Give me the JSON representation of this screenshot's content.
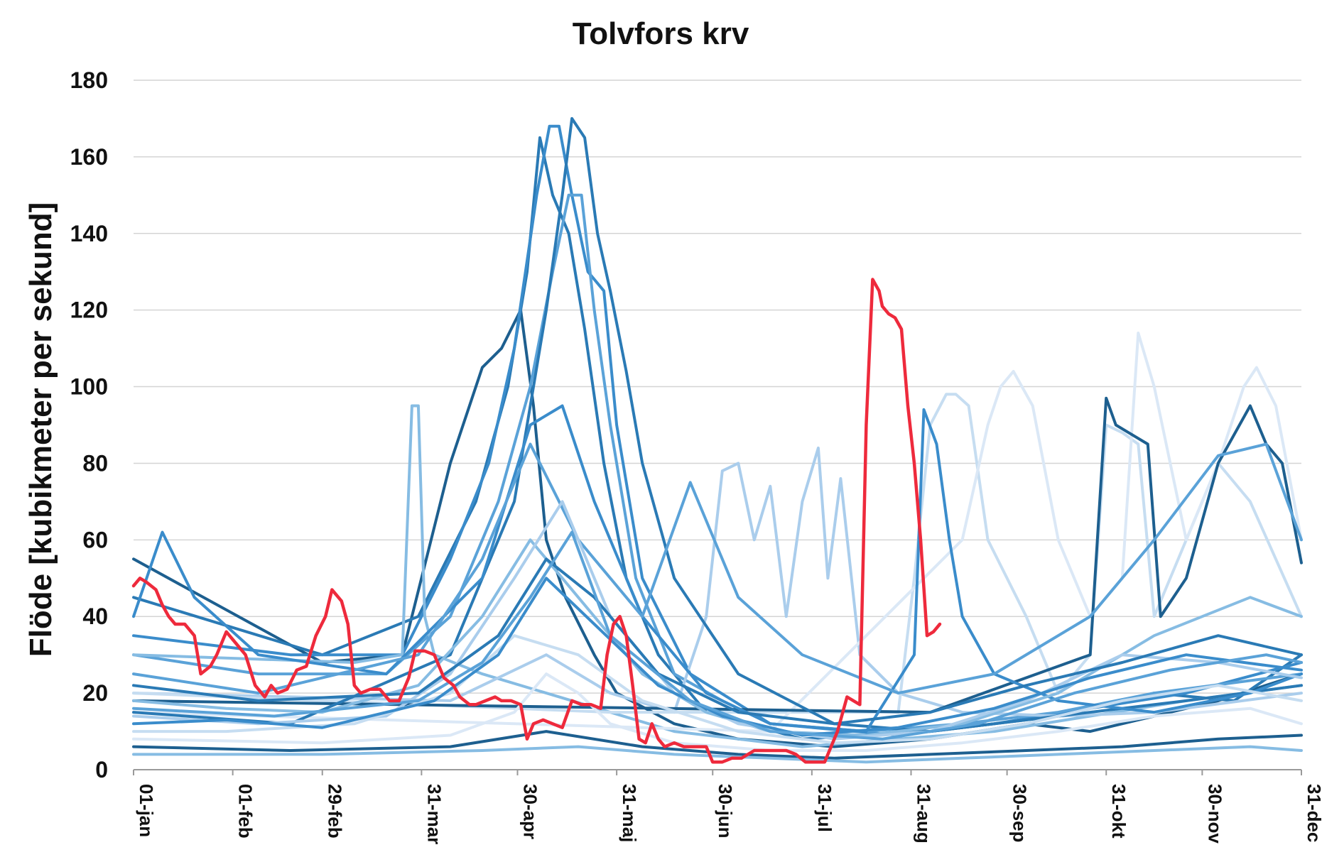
{
  "chart_data": {
    "type": "line",
    "title": "Tolvfors krv",
    "xlabel": "",
    "ylabel": "Flöde [kubikmeter per sekund]",
    "ylim": [
      0,
      180
    ],
    "yticks": [
      0,
      20,
      40,
      60,
      80,
      100,
      120,
      140,
      160,
      180
    ],
    "xlim": [
      1,
      366
    ],
    "xticks": [
      {
        "day": 1,
        "label": "01-jan"
      },
      {
        "day": 32,
        "label": "01-feb"
      },
      {
        "day": 60,
        "label": "29-feb"
      },
      {
        "day": 91,
        "label": "31-mar"
      },
      {
        "day": 121,
        "label": "30-apr"
      },
      {
        "day": 152,
        "label": "31-maj"
      },
      {
        "day": 182,
        "label": "30-jun"
      },
      {
        "day": 213,
        "label": "31-jul"
      },
      {
        "day": 244,
        "label": "31-aug"
      },
      {
        "day": 274,
        "label": "30-sep"
      },
      {
        "day": 305,
        "label": "31-okt"
      },
      {
        "day": 335,
        "label": "30-nov"
      },
      {
        "day": 366,
        "label": "31-dec"
      }
    ],
    "grid": "horizontal",
    "legend": "none",
    "highlight_color": "#ee2a3c",
    "history_colors": [
      "#1d5f8f",
      "#2a7ab5",
      "#3a8ccb",
      "#5aa2d8",
      "#86bce3",
      "#aacdec",
      "#c6ddf1",
      "#dbe8f6"
    ],
    "highlight_series": {
      "name": "",
      "x": [
        1,
        3,
        5,
        8,
        10,
        12,
        14,
        17,
        20,
        22,
        25,
        27,
        30,
        33,
        36,
        39,
        42,
        44,
        46,
        49,
        52,
        55,
        58,
        61,
        63,
        66,
        68,
        70,
        72,
        75,
        78,
        81,
        84,
        87,
        89,
        92,
        95,
        98,
        101,
        103,
        106,
        108,
        111,
        114,
        116,
        119,
        122,
        124,
        126,
        129,
        132,
        135,
        138,
        141,
        144,
        147,
        149,
        151,
        153,
        155,
        157,
        159,
        161,
        163,
        165,
        167,
        170,
        173,
        176,
        180,
        182,
        185,
        188,
        191,
        195,
        199,
        202,
        205,
        208,
        211,
        214,
        217,
        221,
        224,
        226,
        228,
        230,
        232,
        234,
        235,
        237,
        239,
        241,
        243,
        245,
        247,
        249,
        251,
        253
      ],
      "y": [
        48,
        50,
        49,
        47,
        43,
        40,
        38,
        38,
        35,
        25,
        27,
        30,
        36,
        33,
        30,
        22,
        19,
        22,
        20,
        21,
        26,
        27,
        35,
        40,
        47,
        44,
        38,
        22,
        20,
        21,
        21,
        18,
        18,
        24,
        31,
        31,
        30,
        24,
        22,
        19,
        17,
        17,
        18,
        19,
        18,
        18,
        17,
        8,
        12,
        13,
        12,
        11,
        18,
        17,
        17,
        16,
        30,
        38,
        40,
        35,
        22,
        8,
        7,
        12,
        8,
        6,
        7,
        6,
        6,
        6,
        2,
        2,
        3,
        3,
        5,
        5,
        5,
        5,
        4,
        2,
        2,
        2,
        10,
        19,
        18,
        17,
        90,
        128,
        125,
        121,
        119,
        118,
        115,
        95,
        80,
        60,
        35,
        36,
        38
      ]
    },
    "historical_series": [
      {
        "x": [
          1,
          60,
          85,
          100,
          110,
          116,
          122,
          126,
          130,
          136,
          145,
          152,
          170,
          190,
          220,
          250,
          280,
          300,
          320,
          340,
          366
        ],
        "y": [
          55,
          28,
          30,
          80,
          105,
          110,
          120,
          95,
          60,
          45,
          30,
          20,
          12,
          8,
          6,
          8,
          12,
          10,
          14,
          18,
          25
        ]
      },
      {
        "x": [
          1,
          60,
          90,
          108,
          118,
          124,
          128,
          132,
          137,
          142,
          148,
          155,
          165,
          180,
          210,
          250,
          290,
          320,
          345,
          366
        ],
        "y": [
          45,
          30,
          40,
          70,
          100,
          130,
          165,
          150,
          140,
          115,
          80,
          50,
          30,
          15,
          8,
          10,
          14,
          20,
          18,
          30
        ]
      },
      {
        "x": [
          1,
          50,
          85,
          100,
          112,
          120,
          127,
          131,
          134,
          138,
          143,
          148,
          152,
          160,
          175,
          200,
          240,
          270,
          300,
          330,
          366
        ],
        "y": [
          35,
          30,
          30,
          55,
          80,
          110,
          150,
          168,
          168,
          150,
          130,
          125,
          90,
          50,
          25,
          12,
          9,
          12,
          16,
          20,
          28
        ]
      },
      {
        "x": [
          1,
          40,
          80,
          100,
          115,
          125,
          132,
          137,
          141,
          145,
          150,
          158,
          170,
          185,
          200,
          230,
          260,
          290,
          320,
          366
        ],
        "y": [
          30,
          25,
          25,
          40,
          70,
          100,
          130,
          150,
          150,
          120,
          90,
          50,
          25,
          18,
          12,
          10,
          12,
          15,
          20,
          25
        ]
      },
      {
        "x": [
          1,
          70,
          85,
          88,
          90,
          92,
          95,
          110,
          130,
          150,
          170,
          190,
          210,
          240,
          270,
          300,
          330,
          366
        ],
        "y": [
          30,
          28,
          30,
          95,
          95,
          40,
          30,
          25,
          20,
          15,
          10,
          8,
          6,
          8,
          10,
          14,
          18,
          22
        ]
      },
      {
        "x": [
          1,
          100,
          130,
          150,
          170,
          180,
          185,
          190,
          195,
          200,
          205,
          210,
          215,
          218,
          222,
          228,
          240,
          260,
          290,
          320,
          366
        ],
        "y": [
          20,
          18,
          30,
          20,
          15,
          40,
          78,
          80,
          60,
          74,
          40,
          70,
          84,
          50,
          76,
          30,
          20,
          15,
          14,
          15,
          20
        ]
      },
      {
        "x": [
          1,
          150,
          240,
          245,
          250,
          255,
          258,
          262,
          268,
          280,
          290,
          300,
          305,
          310,
          315,
          320,
          330,
          340,
          350,
          366
        ],
        "y": [
          20,
          15,
          15,
          50,
          90,
          98,
          98,
          95,
          60,
          40,
          20,
          30,
          90,
          88,
          85,
          40,
          60,
          80,
          70,
          40
        ]
      },
      {
        "x": [
          1,
          200,
          260,
          268,
          272,
          276,
          282,
          290,
          300,
          310,
          315,
          320,
          330,
          340,
          348,
          352,
          358,
          366
        ],
        "y": [
          15,
          10,
          60,
          90,
          100,
          104,
          95,
          60,
          40,
          50,
          114,
          100,
          60,
          80,
          100,
          105,
          95,
          60
        ]
      },
      {
        "x": [
          1,
          250,
          300,
          305,
          308,
          312,
          318,
          322,
          330,
          340,
          350,
          355,
          360,
          366
        ],
        "y": [
          18,
          15,
          30,
          97,
          90,
          88,
          85,
          40,
          50,
          80,
          95,
          85,
          80,
          54
        ]
      },
      {
        "x": [
          1,
          50,
          100,
          120,
          130,
          135,
          138,
          142,
          146,
          150,
          155,
          160,
          170,
          190,
          220,
          250,
          290,
          330,
          366
        ],
        "y": [
          15,
          12,
          30,
          70,
          120,
          150,
          170,
          165,
          140,
          125,
          104,
          80,
          50,
          25,
          12,
          10,
          14,
          18,
          22
        ]
      },
      {
        "x": [
          1,
          10,
          20,
          40,
          80,
          110,
          125,
          135,
          145,
          160,
          180,
          200,
          230,
          245,
          248,
          252,
          256,
          260,
          270,
          290,
          320,
          350,
          366
        ],
        "y": [
          40,
          62,
          45,
          30,
          25,
          50,
          90,
          95,
          70,
          40,
          20,
          12,
          10,
          30,
          94,
          85,
          60,
          40,
          25,
          18,
          15,
          20,
          25
        ]
      },
      {
        "x": [
          1,
          40,
          90,
          110,
          125,
          140,
          160,
          175,
          190,
          210,
          240,
          270,
          300,
          320,
          340,
          355,
          366
        ],
        "y": [
          25,
          20,
          30,
          55,
          85,
          60,
          40,
          75,
          45,
          30,
          20,
          25,
          40,
          60,
          82,
          85,
          60
        ]
      },
      {
        "x": [
          1,
          30,
          60,
          90,
          110,
          125,
          140,
          160,
          180,
          200,
          230,
          260,
          290,
          320,
          350,
          366
        ],
        "y": [
          18,
          16,
          15,
          22,
          40,
          60,
          45,
          25,
          15,
          10,
          9,
          12,
          20,
          35,
          45,
          40
        ]
      },
      {
        "x": [
          1,
          40,
          80,
          100,
          120,
          135,
          150,
          170,
          190,
          220,
          250,
          280,
          310,
          340,
          366
        ],
        "y": [
          14,
          12,
          14,
          25,
          50,
          70,
          40,
          20,
          12,
          8,
          10,
          18,
          30,
          28,
          24
        ]
      },
      {
        "x": [
          1,
          30,
          70,
          100,
          120,
          140,
          160,
          190,
          220,
          250,
          280,
          310,
          340,
          366
        ],
        "y": [
          10,
          10,
          12,
          20,
          35,
          30,
          18,
          10,
          7,
          8,
          12,
          18,
          22,
          18
        ]
      },
      {
        "x": [
          1,
          60,
          100,
          120,
          130,
          140,
          150,
          170,
          200,
          230,
          260,
          290,
          320,
          350,
          366
        ],
        "y": [
          8,
          7,
          9,
          15,
          25,
          20,
          12,
          7,
          5,
          5,
          7,
          10,
          14,
          16,
          12
        ]
      },
      {
        "x": [
          1,
          50,
          100,
          130,
          160,
          190,
          220,
          250,
          280,
          310,
          340,
          366
        ],
        "y": [
          6,
          5,
          6,
          10,
          6,
          4,
          3,
          4,
          5,
          6,
          8,
          9
        ]
      },
      {
        "x": [
          1,
          40,
          90,
          115,
          130,
          145,
          165,
          190,
          220,
          250,
          280,
          310,
          340,
          366
        ],
        "y": [
          22,
          18,
          20,
          35,
          55,
          45,
          25,
          15,
          12,
          15,
          22,
          28,
          35,
          30
        ]
      },
      {
        "x": [
          1,
          30,
          60,
          95,
          115,
          130,
          145,
          165,
          185,
          210,
          240,
          270,
          300,
          330,
          366
        ],
        "y": [
          12,
          13,
          11,
          18,
          30,
          50,
          38,
          22,
          14,
          9,
          11,
          16,
          24,
          30,
          26
        ]
      },
      {
        "x": [
          1,
          45,
          90,
          110,
          125,
          138,
          150,
          175,
          200,
          235,
          265,
          295,
          325,
          355,
          366
        ],
        "y": [
          16,
          14,
          18,
          28,
          45,
          62,
          35,
          18,
          10,
          8,
          12,
          20,
          26,
          30,
          28
        ]
      },
      {
        "x": [
          1,
          60,
          110,
          140,
          170,
          200,
          230,
          260,
          290,
          320,
          350,
          366
        ],
        "y": [
          4,
          4,
          5,
          6,
          4,
          3,
          2,
          3,
          4,
          5,
          6,
          5
        ]
      }
    ]
  }
}
